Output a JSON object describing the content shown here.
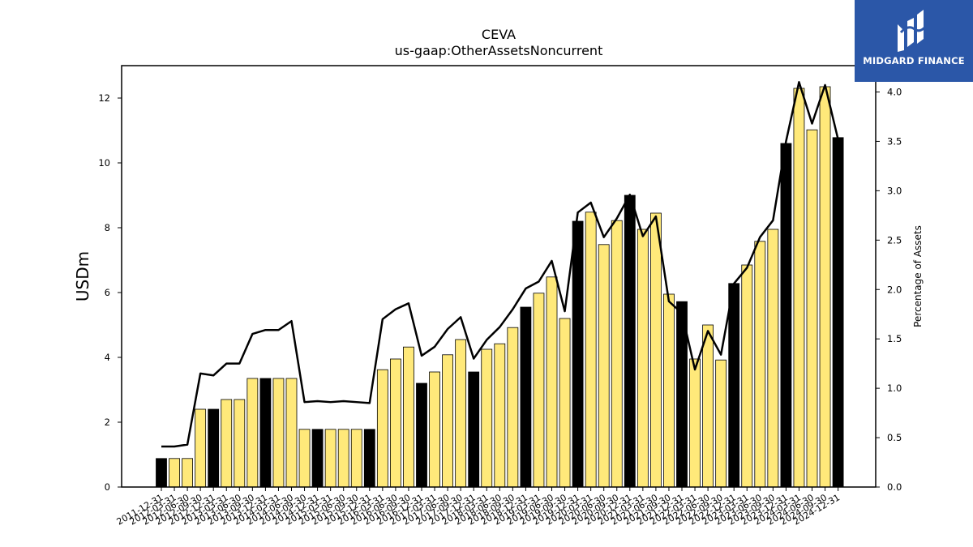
{
  "brand": {
    "name": "MIDGARD FINANCE",
    "logo_icon": "midgard-m-logo-icon",
    "background": "#2b57a8"
  },
  "chart_data": {
    "type": "bar",
    "title": "CEVA",
    "subtitle": "us-gaap:OtherAssetsNoncurrent",
    "ylabel": "USDm",
    "ylabel_right": "Percentage of Assets",
    "ylim": [
      0,
      13
    ],
    "ylim_right": [
      0,
      4.2667
    ],
    "yticks": [
      "0",
      "2",
      "4",
      "6",
      "8",
      "10",
      "12"
    ],
    "yticks_right": [
      "0.0",
      "0.5",
      "1.0",
      "1.5",
      "2.0",
      "2.5",
      "3.0",
      "3.5",
      "4.0"
    ],
    "bar_colors": {
      "annual": "#000000",
      "quarter": "#ffe97a"
    },
    "categories": [
      "2011-12-31",
      "2012-03-31",
      "2012-06-30",
      "2012-09-30",
      "2012-12-31",
      "2013-03-31",
      "2013-06-30",
      "2013-09-30",
      "2013-12-31",
      "2014-03-31",
      "2014-06-30",
      "2014-09-30",
      "2014-12-31",
      "2015-03-31",
      "2015-06-30",
      "2015-09-30",
      "2015-12-31",
      "2016-03-31",
      "2016-06-30",
      "2016-09-30",
      "2016-12-31",
      "2017-03-31",
      "2017-06-30",
      "2017-09-30",
      "2017-12-31",
      "2018-03-31",
      "2018-06-30",
      "2018-09-30",
      "2018-12-31",
      "2019-03-31",
      "2019-06-30",
      "2019-09-30",
      "2019-12-31",
      "2020-03-31",
      "2020-06-30",
      "2020-09-30",
      "2020-12-31",
      "2021-03-31",
      "2021-06-30",
      "2021-09-30",
      "2021-12-31",
      "2022-03-31",
      "2022-06-30",
      "2022-09-30",
      "2022-12-31",
      "2023-03-31",
      "2023-06-30",
      "2023-09-30",
      "2023-12-31",
      "2024-03-31",
      "2024-06-30",
      "2024-09-30",
      "2024-12-31"
    ],
    "series": [
      {
        "type": "bar",
        "values": [
          0.88,
          0.88,
          0.88,
          2.4,
          2.4,
          2.7,
          2.7,
          3.35,
          3.35,
          3.35,
          3.35,
          1.78,
          1.78,
          1.78,
          1.78,
          1.78,
          1.78,
          3.62,
          3.95,
          4.32,
          3.2,
          3.55,
          4.08,
          4.55,
          3.55,
          4.25,
          4.42,
          4.92,
          5.55,
          5.98,
          6.48,
          5.2,
          8.2,
          8.48,
          7.48,
          8.22,
          9.0,
          7.95,
          8.45,
          5.95,
          5.72,
          3.95,
          5.0,
          3.92,
          6.28,
          6.85,
          7.58,
          7.95,
          10.6,
          12.3,
          11.02,
          12.35,
          10.78
        ],
        "annual": [
          true,
          false,
          false,
          false,
          true,
          false,
          false,
          false,
          true,
          false,
          false,
          false,
          true,
          false,
          false,
          false,
          true,
          false,
          false,
          false,
          true,
          false,
          false,
          false,
          true,
          false,
          false,
          false,
          true,
          false,
          false,
          false,
          true,
          false,
          false,
          false,
          true,
          false,
          false,
          false,
          true,
          false,
          false,
          false,
          true,
          false,
          false,
          false,
          true,
          false,
          false,
          false,
          true
        ]
      },
      {
        "type": "line",
        "axis": "right",
        "color": "#000000",
        "values": [
          0.41,
          0.41,
          0.43,
          1.15,
          1.13,
          1.25,
          1.25,
          1.55,
          1.59,
          1.59,
          1.68,
          0.86,
          0.87,
          0.86,
          0.87,
          0.86,
          0.85,
          1.7,
          1.8,
          1.86,
          1.33,
          1.42,
          1.6,
          1.72,
          1.3,
          1.49,
          1.62,
          1.8,
          2.01,
          2.08,
          2.29,
          1.78,
          2.78,
          2.88,
          2.53,
          2.72,
          2.96,
          2.54,
          2.74,
          1.88,
          1.76,
          1.19,
          1.58,
          1.34,
          2.06,
          2.22,
          2.53,
          2.7,
          3.5,
          4.1,
          3.68,
          4.07,
          3.52
        ]
      }
    ]
  }
}
